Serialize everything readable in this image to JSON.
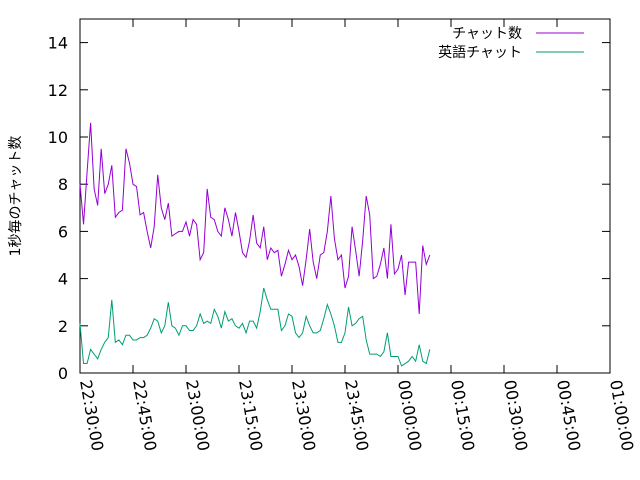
{
  "chart_data": {
    "type": "line",
    "title": "",
    "xlabel": "",
    "ylabel": "1秒毎のチャット数",
    "xlim": [
      "22:30:00",
      "01:00:00"
    ],
    "ylim": [
      0,
      15
    ],
    "x_ticks": [
      "22:30:00",
      "22:45:00",
      "23:00:00",
      "23:15:00",
      "23:30:00",
      "23:45:00",
      "00:00:00",
      "00:15:00",
      "00:30:00",
      "00:45:00",
      "01:00:00"
    ],
    "y_ticks": [
      0,
      2,
      4,
      6,
      8,
      10,
      12,
      14
    ],
    "grid": false,
    "legend": "top-right",
    "x_start": "22:30:00",
    "x_step_seconds": 60,
    "series": [
      {
        "name": "チャット数",
        "color": "#9400d3",
        "values": [
          8.0,
          6.3,
          8.5,
          10.6,
          7.8,
          7.1,
          9.5,
          7.6,
          8.0,
          8.8,
          6.6,
          6.8,
          6.9,
          9.5,
          8.9,
          8.0,
          7.9,
          6.7,
          6.8,
          6.0,
          5.3,
          6.2,
          8.4,
          7.0,
          6.5,
          7.2,
          5.8,
          5.9,
          6.0,
          6.0,
          6.4,
          5.8,
          6.5,
          6.3,
          4.8,
          5.1,
          7.8,
          6.6,
          6.5,
          6.0,
          5.8,
          7.0,
          6.5,
          5.8,
          6.8,
          6.0,
          5.1,
          4.9,
          5.6,
          6.7,
          5.5,
          5.3,
          6.2,
          4.8,
          5.3,
          5.1,
          5.2,
          4.1,
          4.6,
          5.2,
          4.8,
          5.0,
          4.5,
          3.7,
          4.8,
          6.1,
          4.7,
          4.0,
          5.0,
          5.1,
          6.0,
          7.5,
          5.7,
          4.8,
          5.0,
          3.6,
          4.1,
          6.2,
          5.2,
          4.1,
          5.6,
          7.5,
          6.7,
          4.0,
          4.1,
          4.6,
          5.3,
          4.0,
          6.3,
          4.2,
          4.4,
          5.0,
          3.3,
          4.7,
          4.7,
          4.7,
          2.5,
          5.4,
          4.6,
          5.0
        ]
      },
      {
        "name": "英語チャット",
        "color": "#009e73",
        "values": [
          2.1,
          0.4,
          0.4,
          1.0,
          0.8,
          0.6,
          1.0,
          1.3,
          1.5,
          3.1,
          1.3,
          1.4,
          1.2,
          1.6,
          1.6,
          1.4,
          1.4,
          1.5,
          1.5,
          1.6,
          1.9,
          2.3,
          2.2,
          1.7,
          2.0,
          3.0,
          2.0,
          1.9,
          1.6,
          2.0,
          2.0,
          1.8,
          1.8,
          2.0,
          2.5,
          2.1,
          2.2,
          2.1,
          2.7,
          2.4,
          1.9,
          2.6,
          2.2,
          2.3,
          2.0,
          1.9,
          2.1,
          1.7,
          2.2,
          2.2,
          1.9,
          2.6,
          3.6,
          3.1,
          2.7,
          2.7,
          2.7,
          1.8,
          2.0,
          2.5,
          2.4,
          1.7,
          1.5,
          1.7,
          2.4,
          2.0,
          1.7,
          1.7,
          1.8,
          2.3,
          2.9,
          2.5,
          2.0,
          1.3,
          1.3,
          1.7,
          2.8,
          2.0,
          2.1,
          2.3,
          2.4,
          1.4,
          0.8,
          0.8,
          0.8,
          0.7,
          0.9,
          1.7,
          0.7,
          0.7,
          0.7,
          0.3,
          0.4,
          0.5,
          0.7,
          0.5,
          1.2,
          0.5,
          0.4,
          1.0
        ]
      }
    ]
  }
}
